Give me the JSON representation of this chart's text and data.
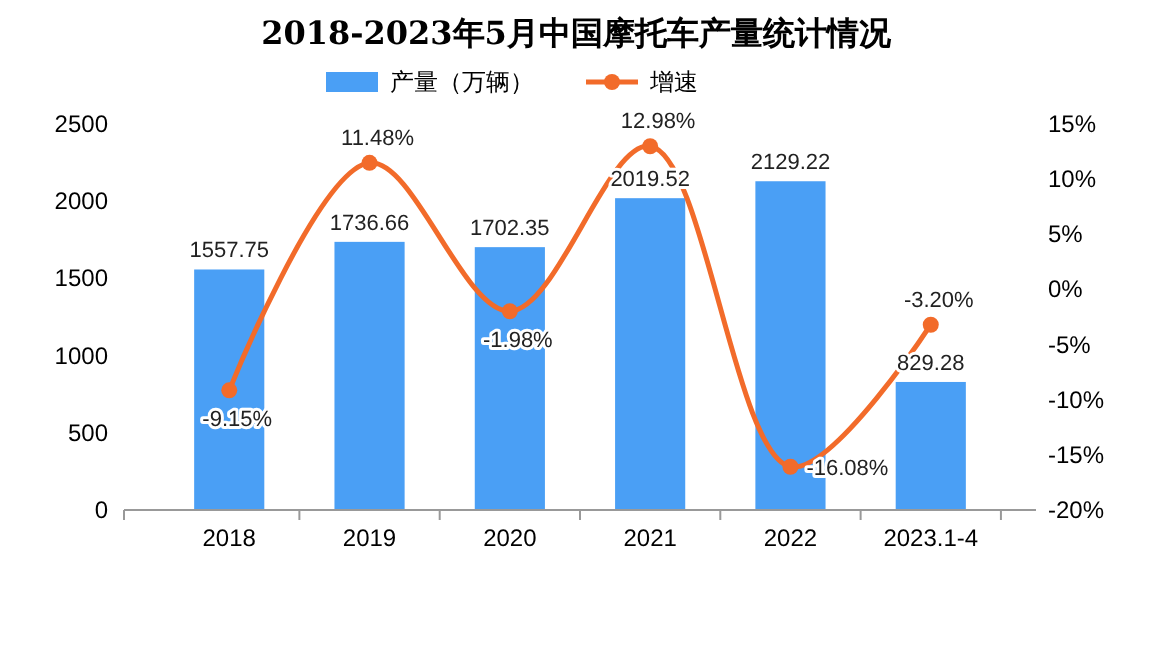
{
  "chart_data": {
    "type": "bar",
    "title": "2018-2023年5月中国摩托车产量统计情况",
    "categories": [
      "2018",
      "2019",
      "2020",
      "2021",
      "2022",
      "2023.1-4"
    ],
    "series": [
      {
        "name": "产量（万辆）",
        "color": "#4a9ff5",
        "values": [
          1557.75,
          1736.66,
          1702.35,
          2019.52,
          2129.22,
          829.28
        ],
        "value_labels": [
          "1557.75",
          "1736.66",
          "1702.35",
          "2019.52",
          "2129.22",
          "829.28"
        ]
      },
      {
        "name": "增速",
        "type": "line",
        "axis": "y2",
        "color": "#f26b2a",
        "marker": "circle",
        "values": [
          -9.15,
          11.48,
          -1.98,
          12.98,
          -16.08,
          -3.2
        ],
        "value_labels": [
          "-9.15%",
          "11.48%",
          "-1.98%",
          "12.98%",
          "-16.08%",
          "-3.20%"
        ]
      }
    ],
    "ylim": [
      0,
      2500
    ],
    "yticks": [
      0,
      500,
      1000,
      1500,
      2000,
      2500
    ],
    "y2lim": [
      -20,
      15
    ],
    "y2ticks": [
      {
        "value": -20,
        "label": "-20%"
      },
      {
        "value": -15,
        "label": "-15%"
      },
      {
        "value": -10,
        "label": "-10%"
      },
      {
        "value": -5,
        "label": "-5%"
      },
      {
        "value": 0,
        "label": "0%"
      },
      {
        "value": 5,
        "label": "5%"
      },
      {
        "value": 10,
        "label": "10%"
      },
      {
        "value": 15,
        "label": "15%"
      }
    ],
    "legend": "top"
  }
}
